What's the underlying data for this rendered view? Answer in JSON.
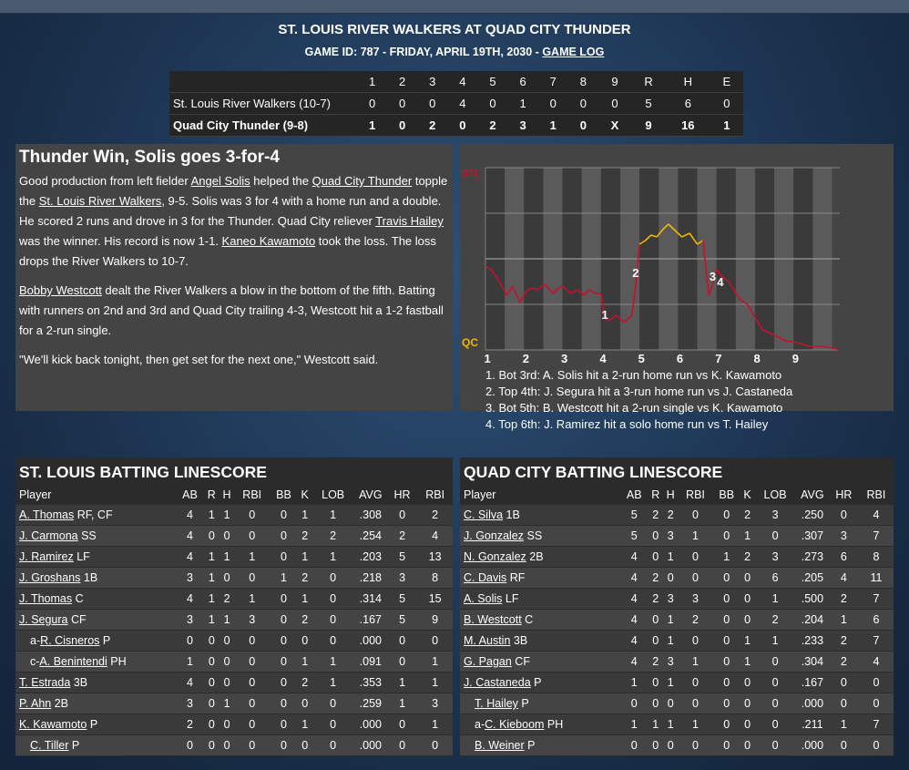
{
  "header": {
    "title": "ST. LOUIS RIVER WALKERS AT QUAD CITY THUNDER",
    "subtitle_prefix": "GAME ID: 787 - FRIDAY, APRIL 19TH, 2030 - ",
    "game_log_link": "GAME LOG"
  },
  "linescore": {
    "columns": [
      "1",
      "2",
      "3",
      "4",
      "5",
      "6",
      "7",
      "8",
      "9",
      "R",
      "H",
      "E"
    ],
    "rows": [
      {
        "team": "St. Louis River Walkers (10-7)",
        "values": [
          "0",
          "0",
          "0",
          "4",
          "0",
          "1",
          "0",
          "0",
          "0",
          "5",
          "6",
          "0"
        ]
      },
      {
        "team": "Quad City Thunder (9-8)",
        "values": [
          "1",
          "0",
          "2",
          "0",
          "2",
          "3",
          "1",
          "0",
          "X",
          "9",
          "16",
          "1"
        ]
      }
    ]
  },
  "recap": {
    "headline": "Thunder Win, Solis goes 3-for-4",
    "p1": [
      {
        "t": "Good production from left fielder "
      },
      {
        "t": "Angel Solis",
        "link": true
      },
      {
        "t": " helped the "
      },
      {
        "t": "Quad City Thunder",
        "link": true
      },
      {
        "t": " topple the "
      },
      {
        "t": "St. Louis River Walkers",
        "link": true
      },
      {
        "t": ", 9-5. Solis was 3 for 4 with a home run and a double. He scored 2 runs and drove in 3 for the Thunder. Quad City reliever "
      },
      {
        "t": "Travis Hailey",
        "link": true
      },
      {
        "t": " was the winner. His record is now 1-1. "
      },
      {
        "t": "Kaneo Kawamoto",
        "link": true
      },
      {
        "t": " took the loss. The loss drops the River Walkers to 10-7."
      }
    ],
    "p2": [
      {
        "t": "Bobby Westcott",
        "link": true
      },
      {
        "t": " dealt the River Walkers a blow in the bottom of the fifth. Batting with runners on 2nd and 3rd and Quad City trailing 4-3, Westcott hit a 1-2 fastball for a 2-run single."
      }
    ],
    "p3": "\"We'll kick back tonight, then get set for the next one,\" Westcott said."
  },
  "chart_data": {
    "type": "line",
    "title": "",
    "top_label": "STL",
    "bottom_label": "QC",
    "xlabel": "",
    "ylabel": "",
    "x_ticks": [
      "1",
      "2",
      "3",
      "4",
      "5",
      "6",
      "7",
      "8",
      "9"
    ],
    "x_range": [
      0,
      9.2
    ],
    "ylim": [
      0,
      1
    ],
    "colors": {
      "stl": "#c8102e",
      "qc": "#f2b705",
      "grid": "#9a9a9a",
      "stripe_dark": "#3a3a3a",
      "stripe_light": "#5a5a5a"
    },
    "series": [
      {
        "x": [
          0,
          0.15,
          0.35,
          0.55,
          0.7,
          0.9,
          1.05,
          1.2,
          1.35,
          1.55,
          1.75,
          1.9,
          2.0,
          2.2,
          2.4,
          2.55,
          2.7,
          2.85,
          3.0,
          3.1,
          3.2,
          3.4,
          3.6,
          3.8,
          3.9,
          4.0,
          4.15,
          4.3,
          4.45,
          4.6,
          4.75,
          4.9,
          5.1,
          5.3,
          5.5,
          5.65,
          5.8,
          5.9,
          6.0,
          6.15,
          6.3,
          6.45,
          6.6,
          6.8,
          7.0,
          7.2,
          7.5,
          7.8,
          8.1,
          8.4,
          8.7,
          9.0,
          9.2
        ],
        "y": [
          0.46,
          0.44,
          0.38,
          0.3,
          0.35,
          0.26,
          0.32,
          0.34,
          0.33,
          0.36,
          0.31,
          0.34,
          0.35,
          0.31,
          0.33,
          0.3,
          0.33,
          0.31,
          0.31,
          0.17,
          0.16,
          0.19,
          0.15,
          0.19,
          0.35,
          0.58,
          0.6,
          0.63,
          0.62,
          0.66,
          0.69,
          0.66,
          0.62,
          0.64,
          0.58,
          0.6,
          0.3,
          0.36,
          0.44,
          0.4,
          0.38,
          0.33,
          0.28,
          0.25,
          0.18,
          0.11,
          0.08,
          0.05,
          0.04,
          0.02,
          0.02,
          0.01,
          0
        ]
      }
    ],
    "annotations": [
      {
        "label": "1",
        "x": 3.1,
        "y": 0.17
      },
      {
        "label": "2",
        "x": 3.9,
        "y": 0.4
      },
      {
        "label": "3",
        "x": 5.9,
        "y": 0.38
      },
      {
        "label": "4",
        "x": 6.1,
        "y": 0.35
      }
    ],
    "legend_items": [
      "1. Bot 3rd: A. Solis hit a 2-run home run vs K. Kawamoto",
      "2. Top 4th: J. Segura hit a 3-run home run vs J. Castaneda",
      "3. Bot 5th: B. Westcott hit a 2-run single vs K. Kawamoto",
      "4. Top 6th: J. Ramirez hit a solo home run vs T. Hailey"
    ]
  },
  "stl_batting": {
    "title": "ST. LOUIS BATTING LINESCORE",
    "headers": [
      "Player",
      "AB",
      "R",
      "H",
      "RBI",
      "BB",
      "K",
      "LOB",
      "AVG",
      "HR",
      "RBI"
    ],
    "rows": [
      {
        "prefix": "",
        "name": "A. Thomas",
        "pos": "RF, CF",
        "stats": [
          "4",
          "1",
          "1",
          "0",
          "0",
          "1",
          "1",
          ".308",
          "0",
          "2"
        ]
      },
      {
        "prefix": "",
        "name": "J. Carmona",
        "pos": "SS",
        "stats": [
          "4",
          "0",
          "0",
          "0",
          "0",
          "2",
          "2",
          ".254",
          "2",
          "4"
        ]
      },
      {
        "prefix": "",
        "name": "J. Ramirez",
        "pos": "LF",
        "stats": [
          "4",
          "1",
          "1",
          "1",
          "0",
          "1",
          "1",
          ".203",
          "5",
          "13"
        ]
      },
      {
        "prefix": "",
        "name": "J. Groshans",
        "pos": "1B",
        "stats": [
          "3",
          "1",
          "0",
          "0",
          "1",
          "2",
          "0",
          ".218",
          "3",
          "8"
        ]
      },
      {
        "prefix": "",
        "name": "J. Thomas",
        "pos": "C",
        "stats": [
          "4",
          "1",
          "2",
          "1",
          "0",
          "1",
          "0",
          ".314",
          "5",
          "15"
        ]
      },
      {
        "prefix": "",
        "name": "J. Segura",
        "pos": "CF",
        "stats": [
          "3",
          "1",
          "1",
          "3",
          "0",
          "2",
          "0",
          ".167",
          "5",
          "9"
        ]
      },
      {
        "prefix": "a-",
        "name": "R. Cisneros",
        "pos": "P",
        "sub": true,
        "stats": [
          "0",
          "0",
          "0",
          "0",
          "0",
          "0",
          "0",
          ".000",
          "0",
          "0"
        ]
      },
      {
        "prefix": "c-",
        "name": "A. Benintendi",
        "pos": "PH",
        "sub": true,
        "stats": [
          "1",
          "0",
          "0",
          "0",
          "0",
          "1",
          "1",
          ".091",
          "0",
          "1"
        ]
      },
      {
        "prefix": "",
        "name": "T. Estrada",
        "pos": "3B",
        "stats": [
          "4",
          "0",
          "0",
          "0",
          "0",
          "2",
          "1",
          ".353",
          "1",
          "1"
        ]
      },
      {
        "prefix": "",
        "name": "P. Ahn",
        "pos": "2B",
        "stats": [
          "3",
          "0",
          "1",
          "0",
          "0",
          "0",
          "0",
          ".259",
          "1",
          "3"
        ]
      },
      {
        "prefix": "",
        "name": "K. Kawamoto",
        "pos": "P",
        "stats": [
          "2",
          "0",
          "0",
          "0",
          "0",
          "1",
          "0",
          ".000",
          "0",
          "1"
        ]
      },
      {
        "prefix": "",
        "name": "C. Tiller",
        "pos": "P",
        "sub": true,
        "stats": [
          "0",
          "0",
          "0",
          "0",
          "0",
          "0",
          "0",
          ".000",
          "0",
          "0"
        ]
      }
    ]
  },
  "qc_batting": {
    "title": "QUAD CITY BATTING LINESCORE",
    "headers": [
      "Player",
      "AB",
      "R",
      "H",
      "RBI",
      "BB",
      "K",
      "LOB",
      "AVG",
      "HR",
      "RBI"
    ],
    "rows": [
      {
        "prefix": "",
        "name": "C. Silva",
        "pos": "1B",
        "stats": [
          "5",
          "2",
          "2",
          "0",
          "0",
          "2",
          "3",
          ".250",
          "0",
          "4"
        ]
      },
      {
        "prefix": "",
        "name": "J. Gonzalez",
        "pos": "SS",
        "stats": [
          "5",
          "0",
          "3",
          "1",
          "0",
          "1",
          "0",
          ".307",
          "3",
          "7"
        ]
      },
      {
        "prefix": "",
        "name": "N. Gonzalez",
        "pos": "2B",
        "stats": [
          "4",
          "0",
          "1",
          "0",
          "1",
          "2",
          "3",
          ".273",
          "6",
          "8"
        ]
      },
      {
        "prefix": "",
        "name": "C. Davis",
        "pos": "RF",
        "stats": [
          "4",
          "2",
          "0",
          "0",
          "0",
          "0",
          "6",
          ".205",
          "4",
          "11"
        ]
      },
      {
        "prefix": "",
        "name": "A. Solis",
        "pos": "LF",
        "stats": [
          "4",
          "2",
          "3",
          "3",
          "0",
          "0",
          "1",
          ".500",
          "2",
          "7"
        ]
      },
      {
        "prefix": "",
        "name": "B. Westcott",
        "pos": "C",
        "stats": [
          "4",
          "0",
          "1",
          "2",
          "0",
          "0",
          "2",
          ".204",
          "1",
          "6"
        ]
      },
      {
        "prefix": "",
        "name": "M. Austin",
        "pos": "3B",
        "stats": [
          "4",
          "0",
          "1",
          "0",
          "0",
          "1",
          "1",
          ".233",
          "2",
          "7"
        ]
      },
      {
        "prefix": "",
        "name": "G. Pagan",
        "pos": "CF",
        "stats": [
          "4",
          "2",
          "3",
          "1",
          "0",
          "1",
          "0",
          ".304",
          "2",
          "4"
        ]
      },
      {
        "prefix": "",
        "name": "J. Castaneda",
        "pos": "P",
        "stats": [
          "1",
          "0",
          "1",
          "0",
          "0",
          "0",
          "0",
          ".167",
          "0",
          "0"
        ]
      },
      {
        "prefix": "",
        "name": "T. Hailey",
        "pos": "P",
        "sub": true,
        "stats": [
          "0",
          "0",
          "0",
          "0",
          "0",
          "0",
          "0",
          ".000",
          "0",
          "0"
        ]
      },
      {
        "prefix": "a-",
        "name": "C. Kieboom",
        "pos": "PH",
        "sub": true,
        "stats": [
          "1",
          "1",
          "1",
          "1",
          "0",
          "0",
          "0",
          ".211",
          "1",
          "7"
        ]
      },
      {
        "prefix": "",
        "name": "B. Weiner",
        "pos": "P",
        "sub": true,
        "stats": [
          "0",
          "0",
          "0",
          "0",
          "0",
          "0",
          "0",
          ".000",
          "0",
          "0"
        ]
      }
    ]
  }
}
